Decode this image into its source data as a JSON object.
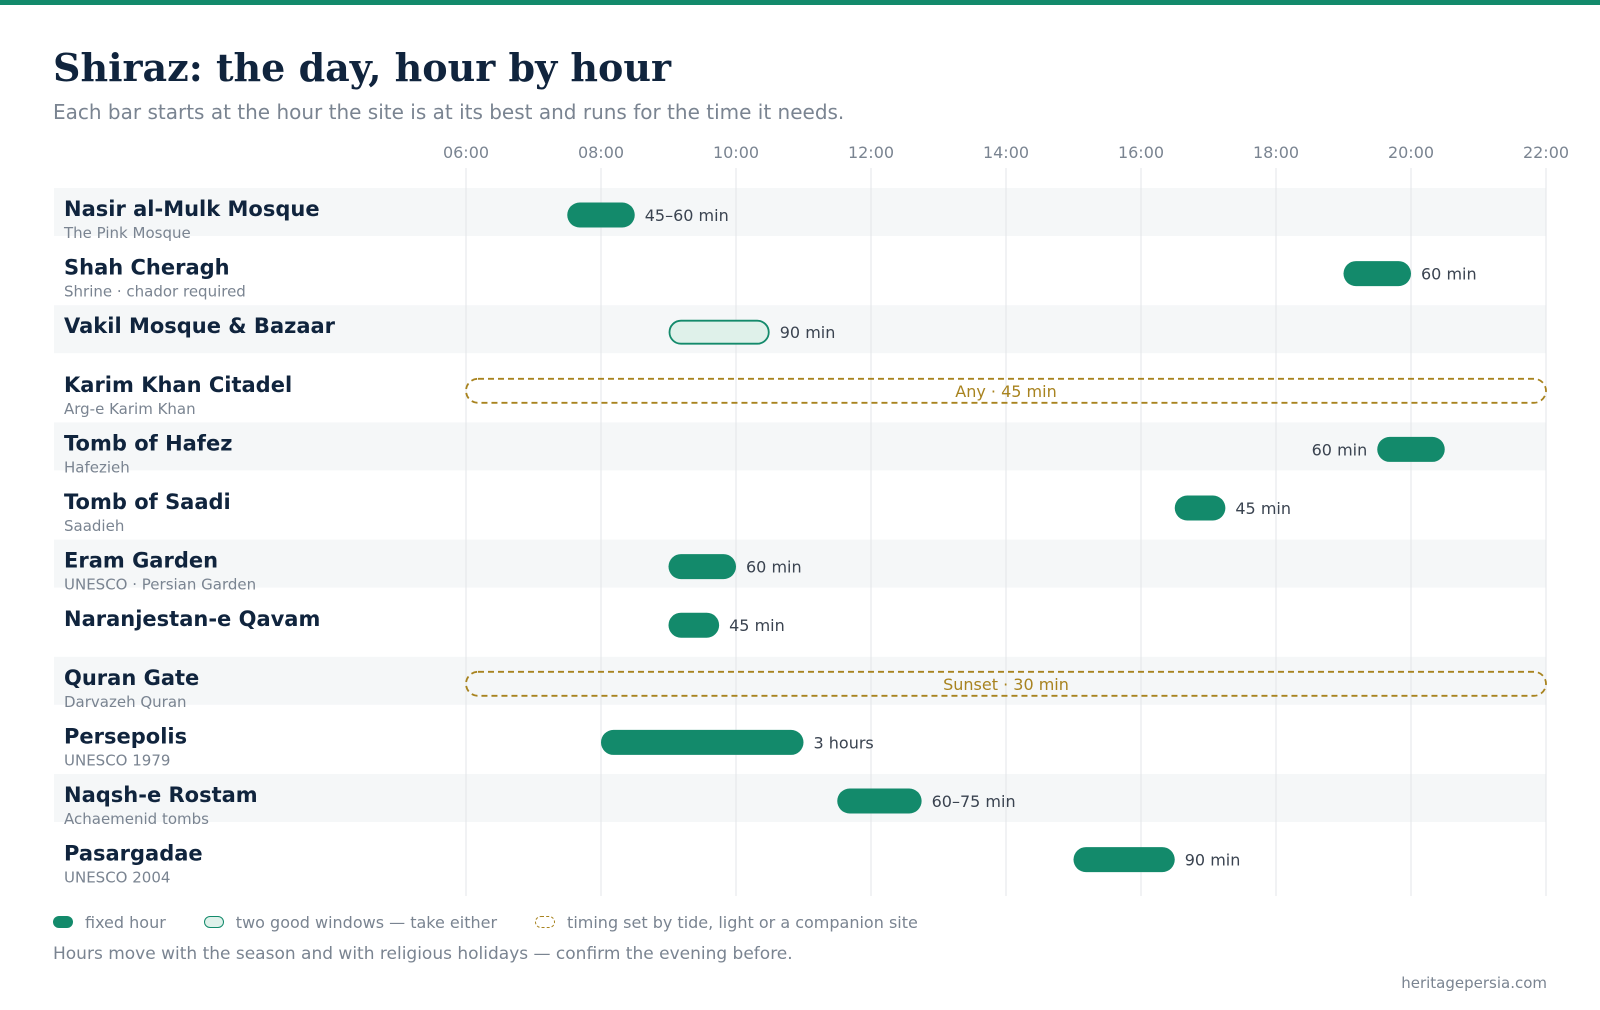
{
  "header": {
    "title": "Shiraz: the day, hour by hour",
    "subtitle": "Each bar starts at the hour the site is at its best and runs for the time it needs."
  },
  "colors": {
    "accent": "#138a6b",
    "accent_light": "#dff1ea",
    "timing": "#a8831f",
    "row_band": "#f5f7f8",
    "grid": "#e3e6e9",
    "title": "#10243d",
    "muted": "#7a8491"
  },
  "legend": {
    "fixed": "fixed hour",
    "two_windows": "two good windows — take either",
    "timing": "timing set by tide, light or a companion site"
  },
  "footnote": "Hours move with the season and with religious holidays — confirm the evening before.",
  "source": "heritagepersia.com",
  "chart_data": {
    "type": "gantt",
    "x_axis": {
      "min": 6,
      "max": 22,
      "ticks": [
        "06:00",
        "08:00",
        "10:00",
        "12:00",
        "14:00",
        "16:00",
        "18:00",
        "20:00",
        "22:00"
      ],
      "tick_hours": [
        6,
        8,
        10,
        12,
        14,
        16,
        18,
        20,
        22
      ],
      "position": "top"
    },
    "grid": true,
    "legend_position": "bottom-left",
    "rows": [
      {
        "name": "Nasir al-Mulk Mosque",
        "subtitle": "The Pink Mosque",
        "start": 7.5,
        "end": 8.5,
        "label": "45–60 min",
        "kind": "fixed",
        "label_side": "right"
      },
      {
        "name": "Shah Cheragh",
        "subtitle": "Shrine · chador required",
        "start": 19.0,
        "end": 20.0,
        "label": "60 min",
        "kind": "fixed",
        "label_side": "right"
      },
      {
        "name": "Vakil Mosque & Bazaar",
        "subtitle": "",
        "start": 9.0,
        "end": 10.5,
        "label": "90 min",
        "kind": "two_windows",
        "label_side": "right"
      },
      {
        "name": "Karim Khan Citadel",
        "subtitle": "Arg-e Karim Khan",
        "start": 6.0,
        "end": 22.0,
        "label": "Any · 45 min",
        "kind": "timing",
        "label_side": "center"
      },
      {
        "name": "Tomb of Hafez",
        "subtitle": "Hafezieh",
        "start": 19.5,
        "end": 20.5,
        "label": "60 min",
        "kind": "fixed",
        "label_side": "left"
      },
      {
        "name": "Tomb of Saadi",
        "subtitle": "Saadieh",
        "start": 16.5,
        "end": 17.25,
        "label": "45 min",
        "kind": "fixed",
        "label_side": "right"
      },
      {
        "name": "Eram Garden",
        "subtitle": "UNESCO · Persian Garden",
        "start": 9.0,
        "end": 10.0,
        "label": "60 min",
        "kind": "fixed",
        "label_side": "right"
      },
      {
        "name": "Naranjestan-e Qavam",
        "subtitle": "",
        "start": 9.0,
        "end": 9.75,
        "label": "45 min",
        "kind": "fixed",
        "label_side": "right"
      },
      {
        "name": "Quran Gate",
        "subtitle": "Darvazeh Quran",
        "start": 6.0,
        "end": 22.0,
        "label": "Sunset · 30 min",
        "kind": "timing",
        "label_side": "center"
      },
      {
        "name": "Persepolis",
        "subtitle": "UNESCO 1979",
        "start": 8.0,
        "end": 11.0,
        "label": "3 hours",
        "kind": "fixed",
        "label_side": "right"
      },
      {
        "name": "Naqsh-e Rostam",
        "subtitle": "Achaemenid tombs",
        "start": 11.5,
        "end": 12.75,
        "label": "60–75 min",
        "kind": "fixed",
        "label_side": "right"
      },
      {
        "name": "Pasargadae",
        "subtitle": "UNESCO 2004",
        "start": 15.0,
        "end": 16.5,
        "label": "90 min",
        "kind": "fixed",
        "label_side": "right"
      }
    ]
  }
}
